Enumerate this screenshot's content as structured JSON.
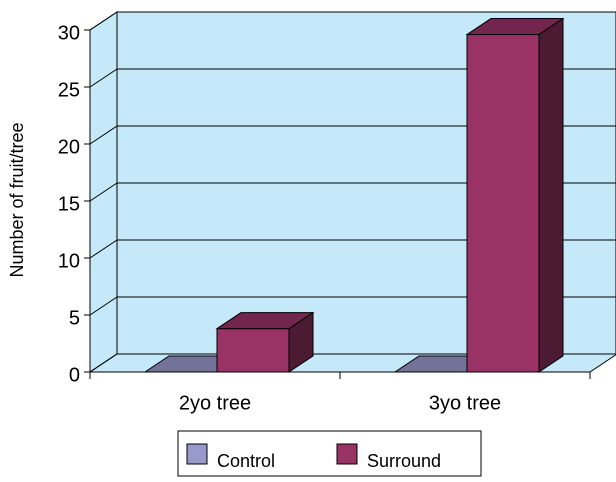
{
  "chart_data": {
    "type": "bar3d",
    "y_label": "Number of fruit/tree",
    "categories": [
      "2yo tree",
      "3yo tree"
    ],
    "series": [
      {
        "name": "Control",
        "color": "#9999cc",
        "values": [
          0,
          0
        ]
      },
      {
        "name": "Surround",
        "color": "#993366",
        "values": [
          3.8,
          29.6
        ]
      }
    ],
    "ylim": [
      0,
      30
    ],
    "yticks": [
      0,
      5,
      10,
      15,
      20,
      25,
      30
    ],
    "grid": true,
    "legend": "bottom"
  }
}
